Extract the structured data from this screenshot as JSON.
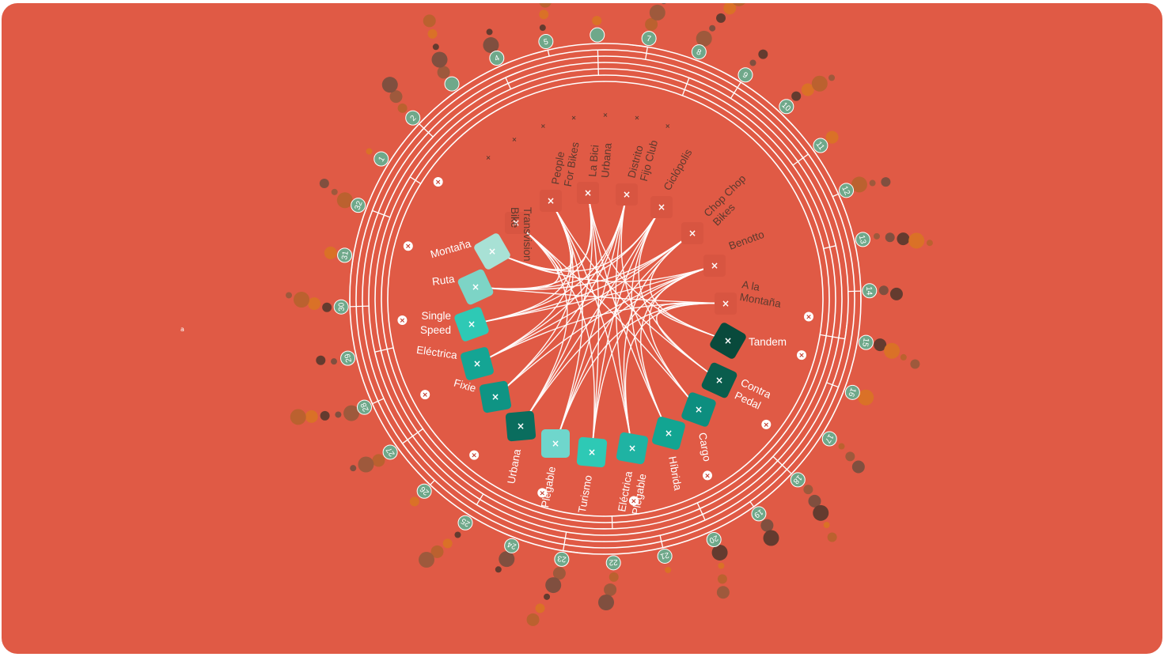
{
  "colors": {
    "background": "#e05a45",
    "ring": "#ffffff",
    "node_marker": "#6fa88a",
    "store_box": "#d85541",
    "store_text": "#5d3a2e",
    "dot_palette": [
      "#d97326",
      "#b8622e",
      "#9a5a3c",
      "#7a4f3f",
      "#5d3a2e"
    ]
  },
  "stray_mark": "a",
  "stores": [
    {
      "lines": [
        "Transvision",
        "Bike"
      ],
      "icon": "x-icon"
    },
    {
      "lines": [
        "People",
        "For Bikes"
      ],
      "icon": "x-icon"
    },
    {
      "lines": [
        "La Bici",
        "Urbana"
      ],
      "icon": "x-icon"
    },
    {
      "lines": [
        "Distrito",
        "Fijo Club"
      ],
      "icon": "x-icon"
    },
    {
      "lines": [
        "Ciclópolis"
      ],
      "icon": "x-icon"
    },
    {
      "lines": [
        "Chop Chop",
        "Bikes"
      ],
      "icon": "x-icon"
    },
    {
      "lines": [
        "Benotto"
      ],
      "icon": "x-icon"
    },
    {
      "lines": [
        "A la",
        "Montaña"
      ],
      "icon": "x-icon"
    }
  ],
  "bike_types": [
    {
      "lines": [
        "Montaña"
      ],
      "color": "#a8e1d5"
    },
    {
      "lines": [
        "Ruta"
      ],
      "color": "#7dd4c6"
    },
    {
      "lines": [
        "Single",
        "Speed"
      ],
      "color": "#2ec9b5"
    },
    {
      "lines": [
        "Eléctrica"
      ],
      "color": "#14a594"
    },
    {
      "lines": [
        "Fixie"
      ],
      "color": "#0f9484"
    },
    {
      "lines": [
        "Urbana"
      ],
      "color": "#0a6d5e"
    },
    {
      "lines": [
        "Plegable"
      ],
      "color": "#6fd6cc"
    },
    {
      "lines": [
        "Turismo"
      ],
      "color": "#2ec9b5"
    },
    {
      "lines": [
        "Eléctrica",
        "Plegable"
      ],
      "color": "#1fb3a3"
    },
    {
      "lines": [
        "Híbrida"
      ],
      "color": "#12a592"
    },
    {
      "lines": [
        "Cargo"
      ],
      "color": "#0d8e7f"
    },
    {
      "lines": [
        "Contra",
        "Pedal"
      ],
      "color": "#0a5d4d"
    },
    {
      "lines": [
        "Tandem"
      ],
      "color": "#094a3c"
    }
  ],
  "ring_markers": [
    "1",
    "2",
    "",
    "4",
    "5",
    "",
    "7",
    "8",
    "9",
    "10",
    "11",
    "12",
    "13",
    "14",
    "15",
    "16",
    "17",
    "18",
    "19",
    "20",
    "21",
    "22",
    "23",
    "24",
    "25",
    "26",
    "27",
    "28",
    "29",
    "30",
    "31",
    "32"
  ],
  "links": [
    [
      0,
      0
    ],
    [
      0,
      1
    ],
    [
      0,
      5
    ],
    [
      0,
      7
    ],
    [
      0,
      10
    ],
    [
      1,
      0
    ],
    [
      1,
      2
    ],
    [
      1,
      3
    ],
    [
      1,
      4
    ],
    [
      1,
      6
    ],
    [
      1,
      8
    ],
    [
      1,
      11
    ],
    [
      2,
      0
    ],
    [
      2,
      1
    ],
    [
      2,
      5
    ],
    [
      2,
      7
    ],
    [
      2,
      9
    ],
    [
      2,
      12
    ],
    [
      3,
      2
    ],
    [
      3,
      3
    ],
    [
      3,
      4
    ],
    [
      3,
      6
    ],
    [
      3,
      8
    ],
    [
      3,
      10
    ],
    [
      4,
      0
    ],
    [
      4,
      1
    ],
    [
      4,
      5
    ],
    [
      4,
      7
    ],
    [
      4,
      9
    ],
    [
      4,
      11
    ],
    [
      5,
      1
    ],
    [
      5,
      2
    ],
    [
      5,
      3
    ],
    [
      5,
      6
    ],
    [
      5,
      8
    ],
    [
      5,
      12
    ],
    [
      6,
      0
    ],
    [
      6,
      2
    ],
    [
      6,
      4
    ],
    [
      6,
      5
    ],
    [
      6,
      7
    ],
    [
      6,
      9
    ],
    [
      6,
      10
    ],
    [
      7,
      1
    ],
    [
      7,
      3
    ],
    [
      7,
      6
    ],
    [
      7,
      8
    ],
    [
      7,
      11
    ],
    [
      7,
      12
    ]
  ]
}
